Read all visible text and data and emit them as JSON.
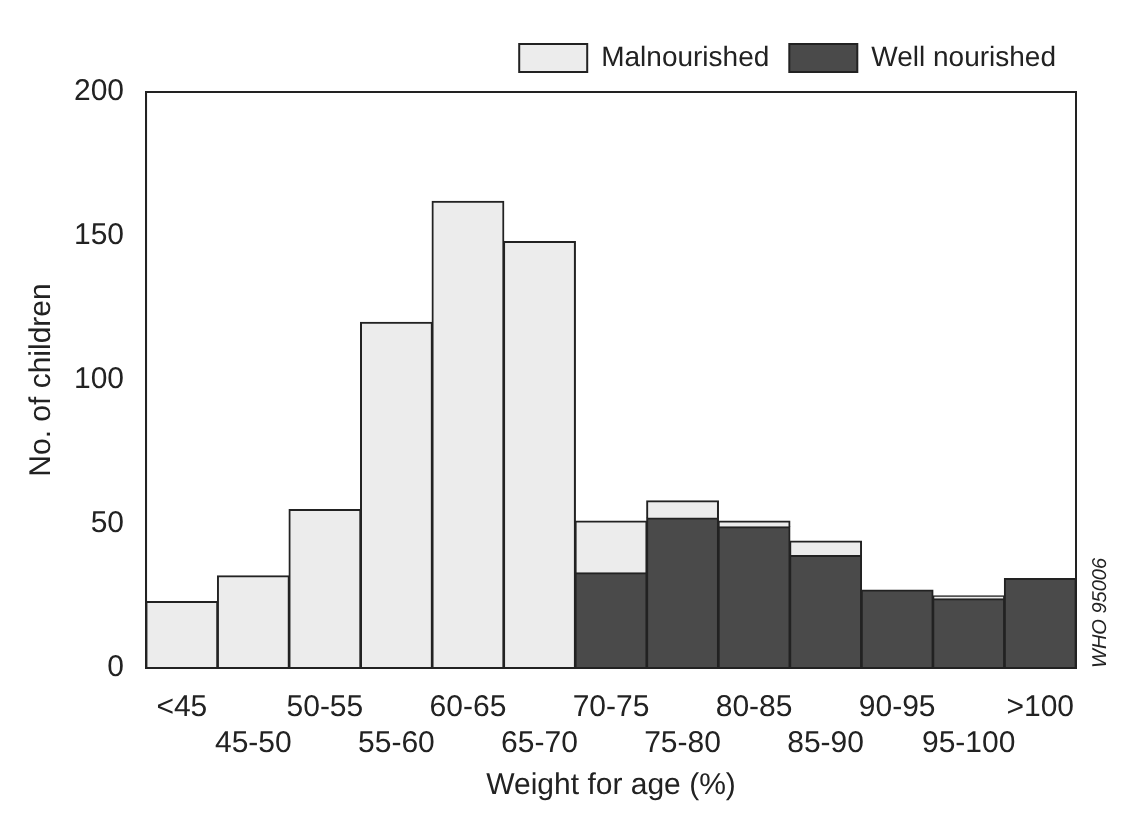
{
  "chart_data": {
    "type": "bar",
    "stacked": true,
    "xlabel": "Weight for age (%)",
    "ylabel": "No. of children",
    "categories": [
      "<45",
      "45-50",
      "50-55",
      "55-60",
      "60-65",
      "65-70",
      "70-75",
      "75-80",
      "80-85",
      "85-90",
      "90-95",
      "95-100",
      ">100"
    ],
    "series": [
      {
        "name": "Well nourished",
        "color": "#4a4a4a",
        "values": [
          0,
          0,
          0,
          0,
          0,
          0,
          33,
          52,
          49,
          39,
          27,
          24,
          31
        ]
      },
      {
        "name": "Malnourished",
        "color": "#ececec",
        "values": [
          23,
          32,
          55,
          120,
          162,
          148,
          18,
          6,
          2,
          5,
          0,
          1,
          0
        ]
      }
    ],
    "ylim": [
      0,
      200
    ],
    "yticks": [
      0,
      50,
      100,
      150,
      200
    ],
    "grid": false,
    "legend": "top right",
    "annotations": [
      "WHO 95006"
    ]
  }
}
